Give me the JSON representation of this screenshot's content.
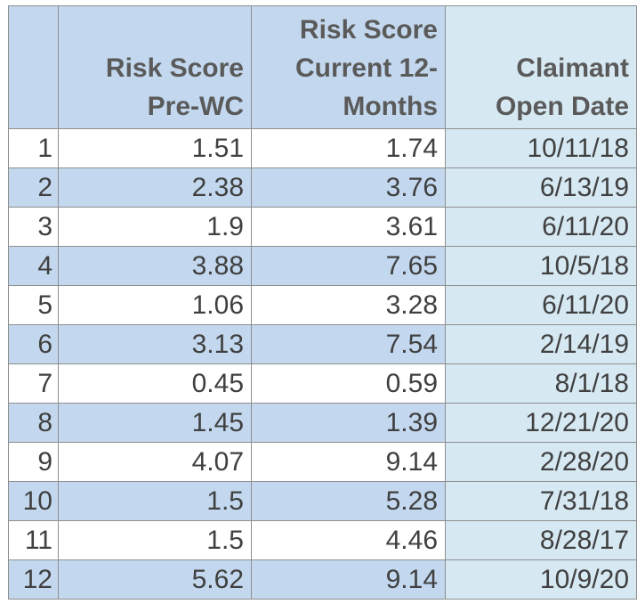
{
  "table": {
    "headers": [
      {
        "lines": []
      },
      {
        "lines": [
          "Risk Score",
          "Pre-WC"
        ]
      },
      {
        "lines": [
          "Risk Score",
          "Current 12-",
          "Months"
        ]
      },
      {
        "lines": [
          "Claimant",
          "Open Date"
        ]
      }
    ],
    "rows": [
      [
        "1",
        "1.51",
        "1.74",
        "10/11/18"
      ],
      [
        "2",
        "2.38",
        "3.76",
        "6/13/19"
      ],
      [
        "3",
        "1.9",
        "3.61",
        "6/11/20"
      ],
      [
        "4",
        "3.88",
        "7.65",
        "10/5/18"
      ],
      [
        "5",
        "1.06",
        "3.28",
        "6/11/20"
      ],
      [
        "6",
        "3.13",
        "7.54",
        "2/14/19"
      ],
      [
        "7",
        "0.45",
        "0.59",
        "8/1/18"
      ],
      [
        "8",
        "1.45",
        "1.39",
        "12/21/20"
      ],
      [
        "9",
        "4.07",
        "9.14",
        "2/28/20"
      ],
      [
        "10",
        "1.5",
        "5.28",
        "7/31/18"
      ],
      [
        "11",
        "1.5",
        "4.46",
        "8/28/17"
      ],
      [
        "12",
        "5.62",
        "9.14",
        "10/9/20"
      ]
    ],
    "colors": {
      "header_fill": "#c3d8ee",
      "date_column_fill": "#d6e8f2",
      "stripe_fill": "#c3d8ee",
      "border": "#8f8f8f",
      "header_text": "#5a5a5a",
      "cell_text": "#404040"
    }
  }
}
